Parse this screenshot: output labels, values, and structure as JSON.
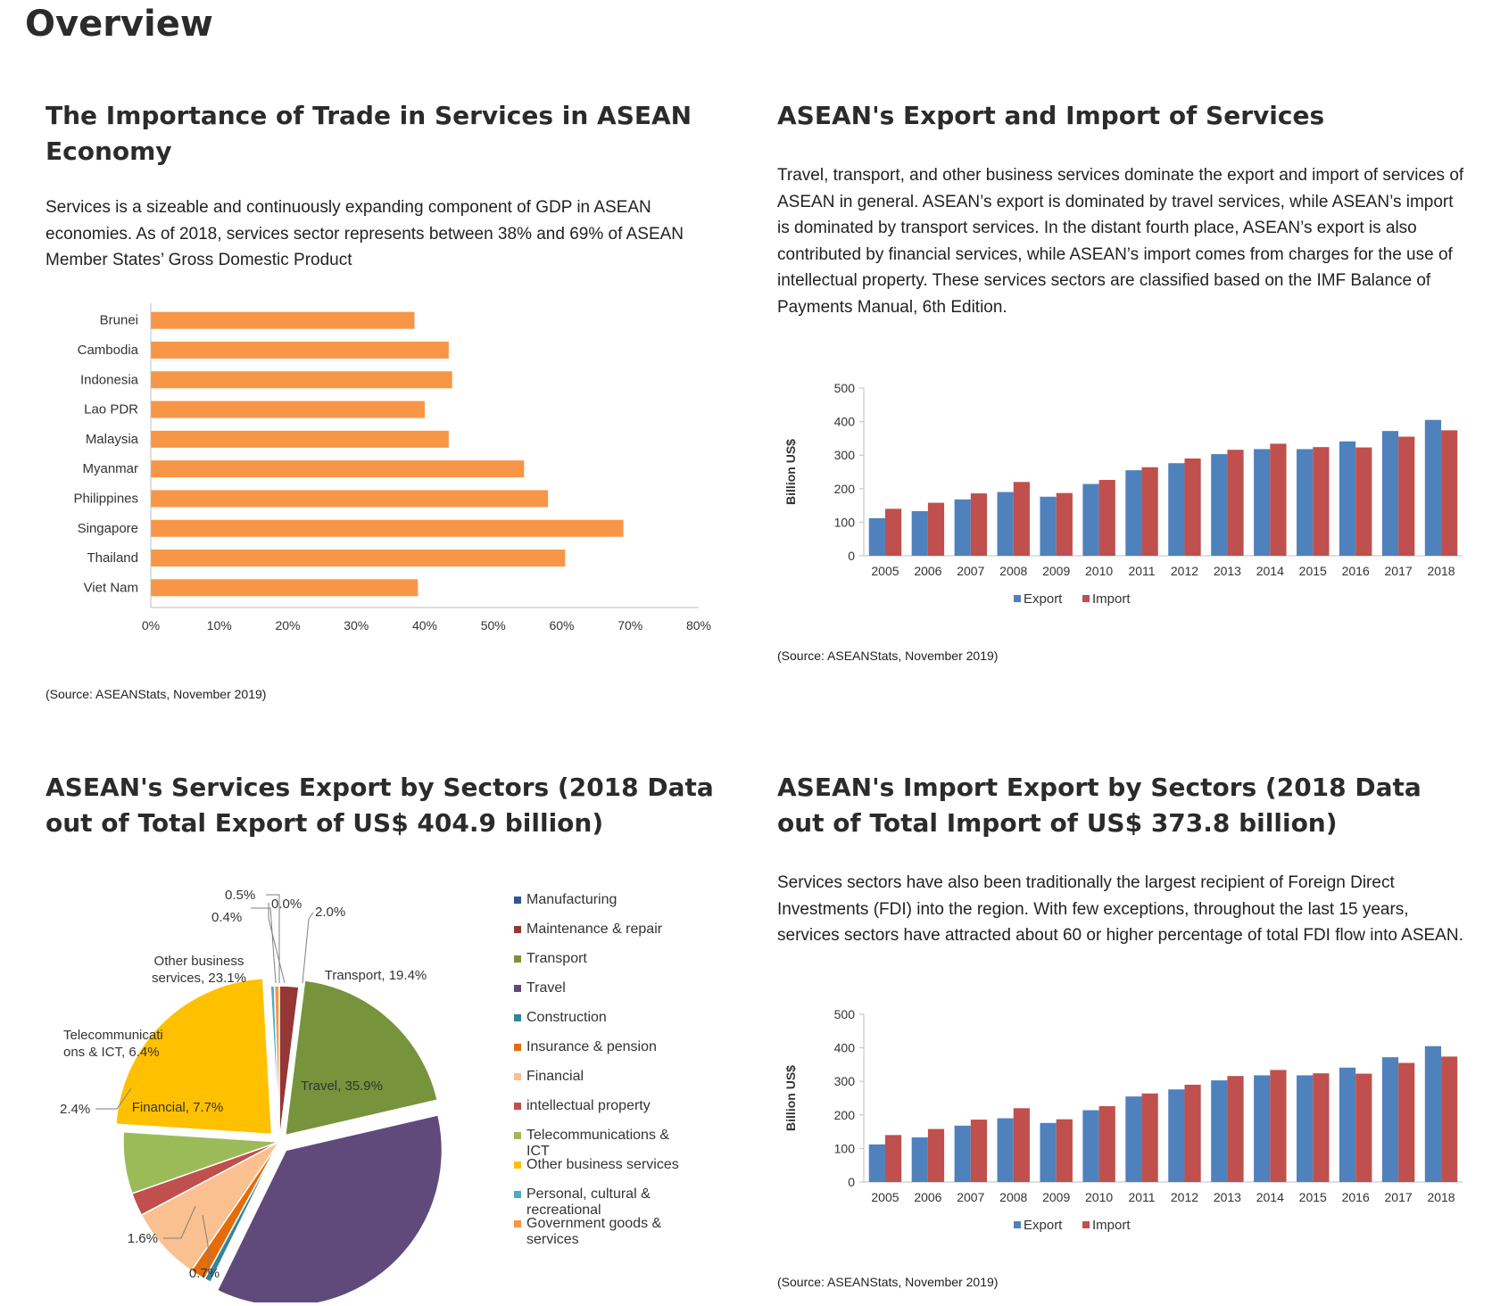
{
  "page": {
    "title": "Overview"
  },
  "sections": {
    "importance": {
      "title": "The Importance of Trade in Services in ASEAN Economy",
      "body": "Services is a sizeable and continuously expanding component of GDP in ASEAN economies. As of 2018, services sector represents between 38% and 69% of ASEAN Member States’ Gross Domestic Product",
      "source": "(Source: ASEANStats, November 2019)"
    },
    "export_import": {
      "title": "ASEAN's Export and Import of Services",
      "body": "Travel, transport, and other business services dominate the export and import of services of ASEAN in general. ASEAN’s export is dominated by travel services, while ASEAN’s import is dominated by transport services. In the distant fourth place, ASEAN’s export is also contributed by financial services, while ASEAN’s import comes from charges for the use of intellectual property. These services sectors are classified based on the IMF Balance of Payments Manual, 6th Edition.",
      "source": "(Source: ASEANStats, November 2019)"
    },
    "export_sectors": {
      "title": "ASEAN's Services Export by Sectors (2018 Data out of Total Export of US$ 404.9 billion)"
    },
    "import_sectors": {
      "title": "ASEAN's Import Export by Sectors (2018 Data out of Total Import of US$ 373.8 billion)",
      "body": "Services sectors have also been traditionally the largest recipient of Foreign Direct Investments (FDI) into the region. With few exceptions, throughout the last 15 years, services sectors have attracted about 60 or higher percentage of total FDI flow into ASEAN.",
      "source": "(Source: ASEANStats, November 2019)"
    }
  },
  "colors": {
    "orange_bar": "#f79646",
    "export": "#4f81bd",
    "import": "#c0504d"
  },
  "chart_data": [
    {
      "type": "bar",
      "orientation": "horizontal",
      "categories": [
        "Brunei",
        "Cambodia",
        "Indonesia",
        "Lao PDR",
        "Malaysia",
        "Myanmar",
        "Philippines",
        "Singapore",
        "Thailand",
        "Viet Nam"
      ],
      "values": [
        38.5,
        43.5,
        44,
        40,
        43.5,
        54.5,
        58,
        69,
        60.5,
        39
      ],
      "xlim": [
        0,
        80
      ],
      "xticks": [
        "0%",
        "10%",
        "20%",
        "30%",
        "40%",
        "50%",
        "60%",
        "70%",
        "80%"
      ],
      "grid": false
    },
    {
      "type": "bar",
      "categories": [
        "2005",
        "2006",
        "2007",
        "2008",
        "2009",
        "2010",
        "2011",
        "2012",
        "2013",
        "2014",
        "2015",
        "2016",
        "2017",
        "2018"
      ],
      "series": [
        {
          "name": "Export",
          "values": [
            112,
            133,
            168,
            190,
            176,
            214,
            255,
            276,
            303,
            318,
            318,
            341,
            372,
            405
          ]
        },
        {
          "name": "Import",
          "values": [
            140,
            158,
            186,
            220,
            187,
            226,
            264,
            290,
            316,
            334,
            324,
            323,
            355,
            374
          ]
        }
      ],
      "ylabel": "Billion US$",
      "ylim": [
        0,
        500
      ],
      "yticks": [
        "0",
        "100",
        "200",
        "300",
        "400",
        "500"
      ],
      "legend": "bottom"
    },
    {
      "type": "pie",
      "slices": [
        {
          "label": "Manufacturing",
          "value": 0.0,
          "text": "0.0%"
        },
        {
          "label": "Maintenance & repair",
          "value": 2.0,
          "text": "2.0%"
        },
        {
          "label": "Transport",
          "value": 19.4,
          "text": "Transport, 19.4%"
        },
        {
          "label": "Travel",
          "value": 35.9,
          "text": "Travel, 35.9%"
        },
        {
          "label": "Construction",
          "value": 0.7,
          "text": "0.7%"
        },
        {
          "label": "Insurance & pension",
          "value": 1.6,
          "text": "1.6%"
        },
        {
          "label": "Financial",
          "value": 7.7,
          "text": "Financial, 7.7%"
        },
        {
          "label": "intellectual property",
          "value": 2.4,
          "text": "2.4%"
        },
        {
          "label": "Telecommunications & ICT",
          "value": 6.4,
          "text": "Telecommunicati ons & ICT, 6.4%"
        },
        {
          "label": "Other business services",
          "value": 23.1,
          "text": "Other business services, 23.1%"
        },
        {
          "label": "Personal, cultural & recreational",
          "value": 0.4,
          "text": "0.4%"
        },
        {
          "label": "Government goods & services",
          "value": 0.5,
          "text": "0.5%"
        }
      ],
      "legend": "right"
    },
    {
      "type": "bar",
      "categories": [
        "2005",
        "2006",
        "2007",
        "2008",
        "2009",
        "2010",
        "2011",
        "2012",
        "2013",
        "2014",
        "2015",
        "2016",
        "2017",
        "2018"
      ],
      "series": [
        {
          "name": "Export",
          "values": [
            112,
            133,
            168,
            190,
            176,
            214,
            255,
            276,
            303,
            318,
            318,
            341,
            372,
            405
          ]
        },
        {
          "name": "Import",
          "values": [
            140,
            158,
            186,
            220,
            187,
            226,
            264,
            290,
            316,
            334,
            324,
            323,
            355,
            374
          ]
        }
      ],
      "ylabel": "Billion US$",
      "ylim": [
        0,
        500
      ],
      "yticks": [
        "0",
        "100",
        "200",
        "300",
        "400",
        "500"
      ],
      "legend": "bottom"
    }
  ],
  "pie_colors": [
    "#2f5597",
    "#953735",
    "#77933c",
    "#604a7b",
    "#31859c",
    "#e46c0a",
    "#fac090",
    "#c0504d",
    "#9bbb59",
    "#ffc000",
    "#4bacc6",
    "#f79646"
  ]
}
